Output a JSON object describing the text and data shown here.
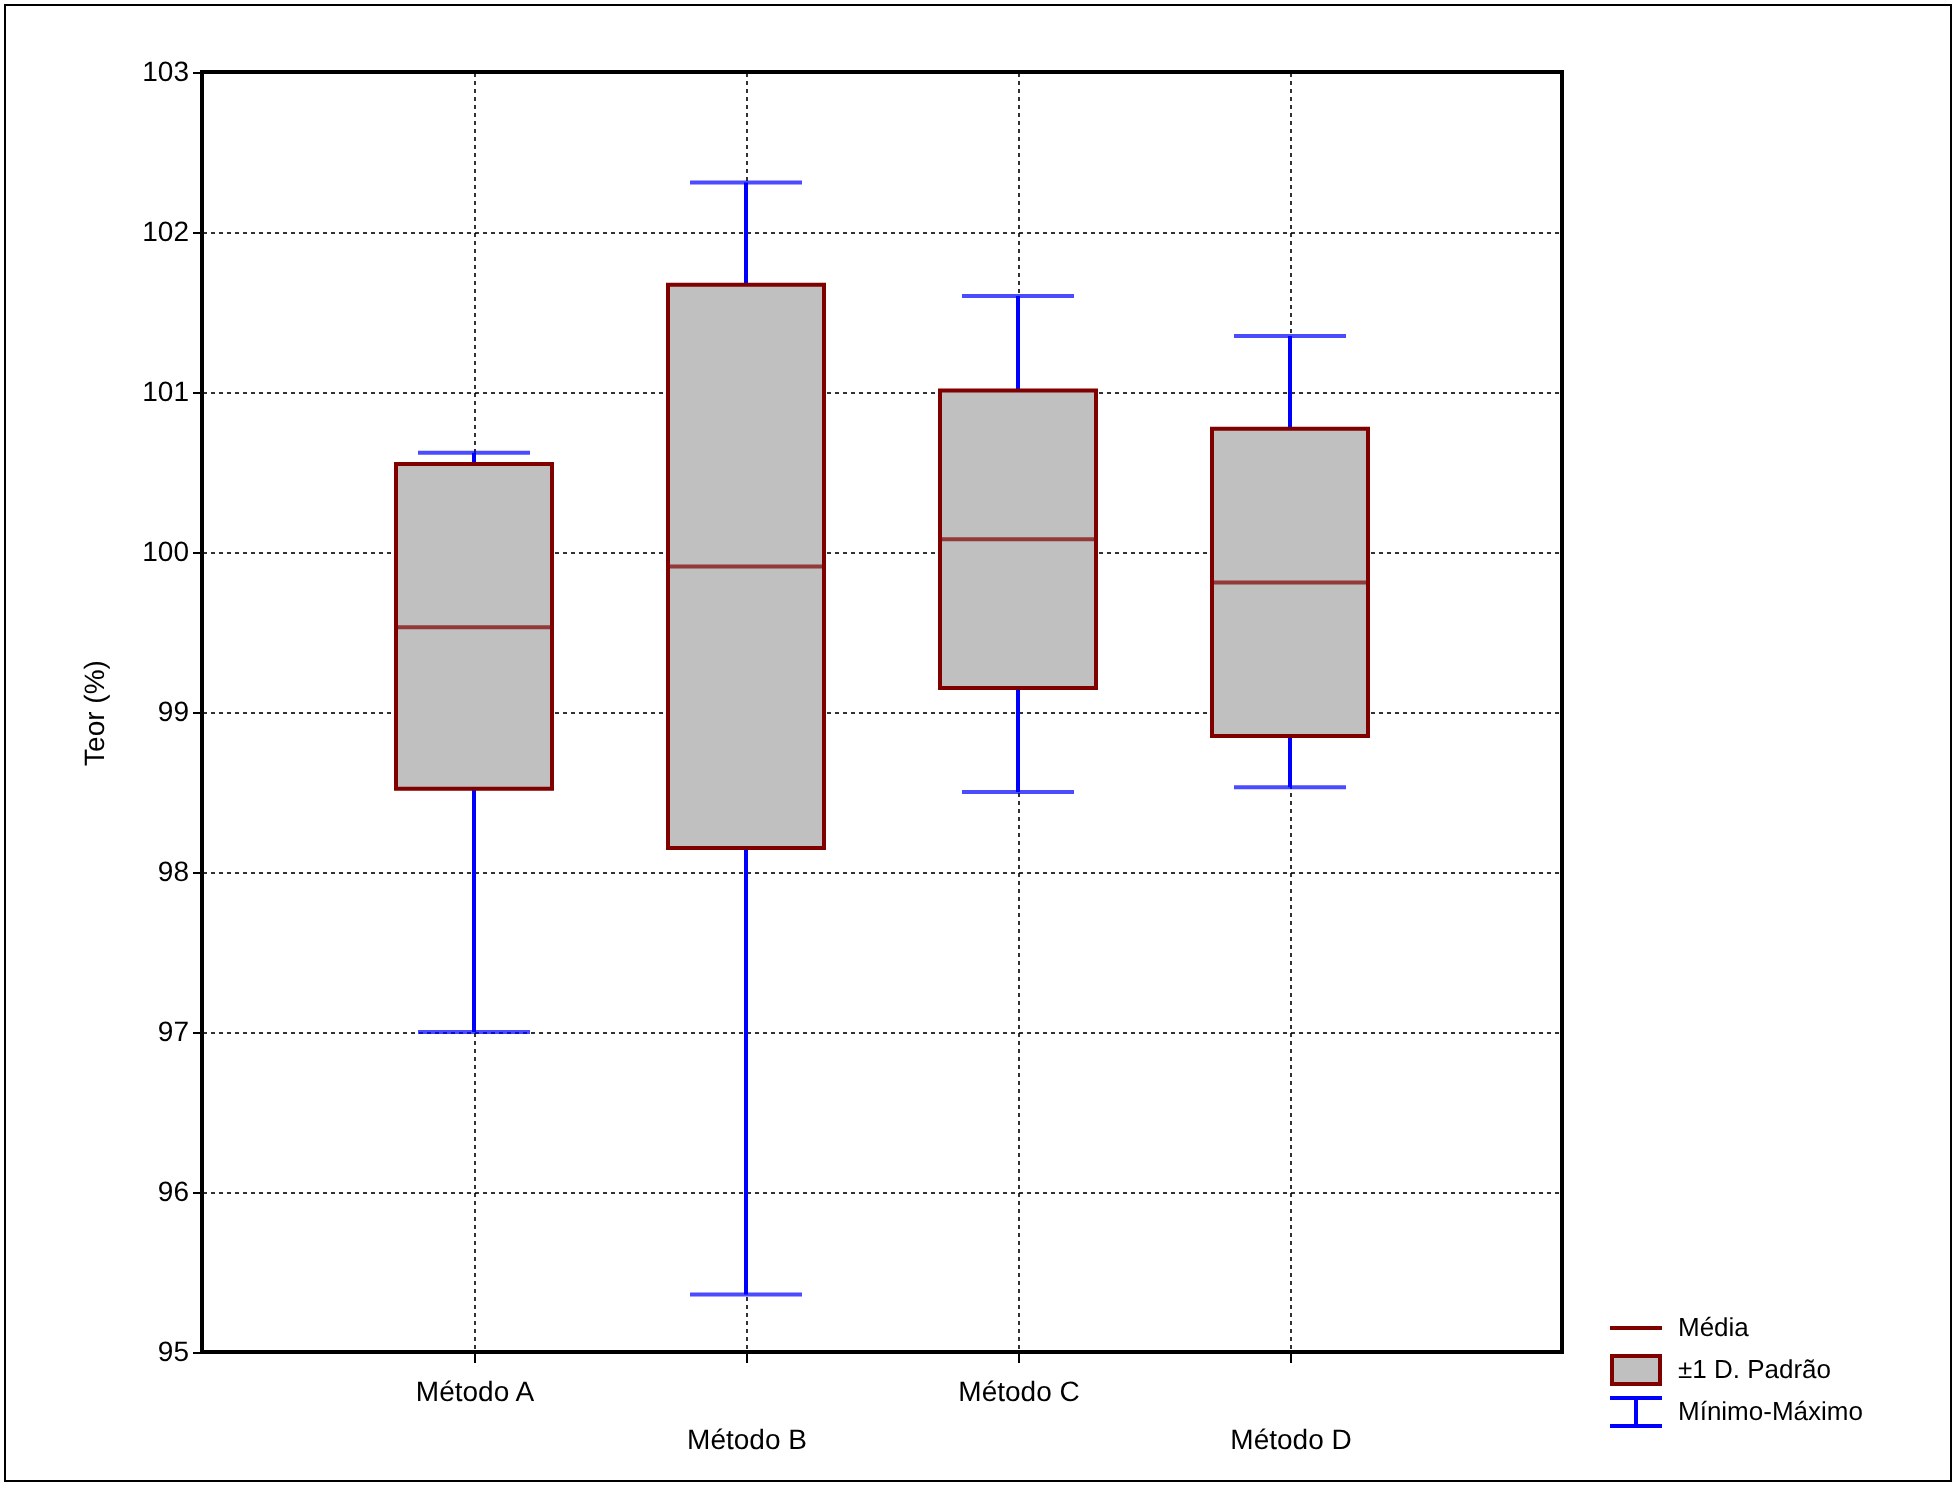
{
  "chart_data": {
    "type": "box",
    "ylabel": "Teor (%)",
    "categories": [
      "Método A",
      "Método B",
      "Método C",
      "Método D"
    ],
    "series": [
      {
        "color": "#c0c0c0",
        "boxes": [
          {
            "low": 97.0,
            "q1": 98.52,
            "median": 99.53,
            "q3": 100.55,
            "high": 100.62
          },
          {
            "low": 95.36,
            "q1": 98.15,
            "median": 99.91,
            "q3": 101.67,
            "high": 102.31
          },
          {
            "low": 98.5,
            "q1": 99.15,
            "median": 100.08,
            "q3": 101.01,
            "high": 101.6
          },
          {
            "low": 98.53,
            "q1": 98.85,
            "median": 99.81,
            "q3": 100.77,
            "high": 101.35
          }
        ]
      }
    ],
    "ylim": [
      95,
      103
    ],
    "yticks": [
      95,
      96,
      97,
      98,
      99,
      100,
      101,
      102,
      103
    ],
    "grid": true,
    "annotations": [
      "Média",
      "±1 D. Padrão",
      "Mínimo-Máximo"
    ]
  }
}
